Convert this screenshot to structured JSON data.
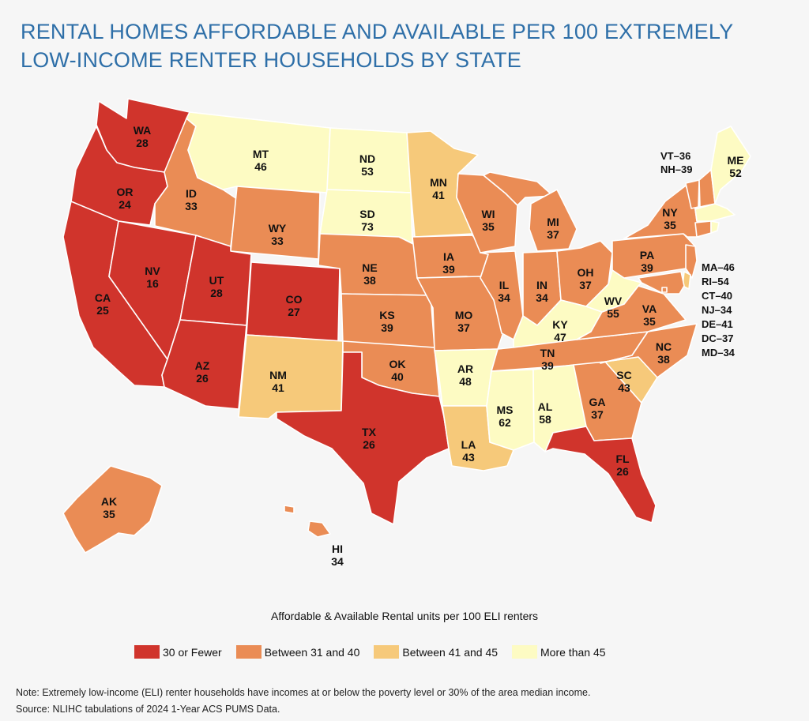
{
  "title": {
    "line1": "RENTAL HOMES AFFORDABLE AND AVAILABLE PER 100 EXTREMELY",
    "line2": "LOW-INCOME RENTER HOUSEHOLDS BY STATE"
  },
  "colors": {
    "cat1": "#d0342c",
    "cat2": "#ea8c55",
    "cat3": "#f6c97a",
    "cat4": "#fdfbc3"
  },
  "states": {
    "WA": {
      "abbr": "WA",
      "value": "28"
    },
    "OR": {
      "abbr": "OR",
      "value": "24"
    },
    "CA": {
      "abbr": "CA",
      "value": "25"
    },
    "NV": {
      "abbr": "NV",
      "value": "16"
    },
    "ID": {
      "abbr": "ID",
      "value": "33"
    },
    "MT": {
      "abbr": "MT",
      "value": "46"
    },
    "WY": {
      "abbr": "WY",
      "value": "33"
    },
    "UT": {
      "abbr": "UT",
      "value": "28"
    },
    "AZ": {
      "abbr": "AZ",
      "value": "26"
    },
    "CO": {
      "abbr": "CO",
      "value": "27"
    },
    "NM": {
      "abbr": "NM",
      "value": "41"
    },
    "ND": {
      "abbr": "ND",
      "value": "53"
    },
    "SD": {
      "abbr": "SD",
      "value": "73"
    },
    "NE": {
      "abbr": "NE",
      "value": "38"
    },
    "KS": {
      "abbr": "KS",
      "value": "39"
    },
    "OK": {
      "abbr": "OK",
      "value": "40"
    },
    "TX": {
      "abbr": "TX",
      "value": "26"
    },
    "MN": {
      "abbr": "MN",
      "value": "41"
    },
    "IA": {
      "abbr": "IA",
      "value": "39"
    },
    "MO": {
      "abbr": "MO",
      "value": "37"
    },
    "AR": {
      "abbr": "AR",
      "value": "48"
    },
    "LA": {
      "abbr": "LA",
      "value": "43"
    },
    "WI": {
      "abbr": "WI",
      "value": "35"
    },
    "IL": {
      "abbr": "IL",
      "value": "34"
    },
    "MI": {
      "abbr": "MI",
      "value": "37"
    },
    "IN": {
      "abbr": "IN",
      "value": "34"
    },
    "OH": {
      "abbr": "OH",
      "value": "37"
    },
    "KY": {
      "abbr": "KY",
      "value": "47"
    },
    "TN": {
      "abbr": "TN",
      "value": "39"
    },
    "MS": {
      "abbr": "MS",
      "value": "62"
    },
    "AL": {
      "abbr": "AL",
      "value": "58"
    },
    "GA": {
      "abbr": "GA",
      "value": "37"
    },
    "FL": {
      "abbr": "FL",
      "value": "26"
    },
    "SC": {
      "abbr": "SC",
      "value": "43"
    },
    "NC": {
      "abbr": "NC",
      "value": "38"
    },
    "VA": {
      "abbr": "VA",
      "value": "35"
    },
    "WV": {
      "abbr": "WV",
      "value": "55"
    },
    "PA": {
      "abbr": "PA",
      "value": "39"
    },
    "NY": {
      "abbr": "NY",
      "value": "35"
    },
    "ME": {
      "abbr": "ME",
      "value": "52"
    },
    "AK": {
      "abbr": "AK",
      "value": "35"
    },
    "HI": {
      "abbr": "HI",
      "value": "34"
    }
  },
  "small_states": {
    "vt": "VT–36",
    "nh": "NH–39",
    "ma": "MA–46",
    "ri": "RI–54",
    "ct": "CT–40",
    "nj": "NJ–34",
    "de": "DE–41",
    "dc": "DC–37",
    "md": "MD–34"
  },
  "legend": {
    "title": "Affordable & Available Rental units per 100 ELI renters",
    "items": [
      {
        "label": "30 or Fewer"
      },
      {
        "label": "Between 31 and 40"
      },
      {
        "label": "Between 41 and 45"
      },
      {
        "label": "More than 45"
      }
    ]
  },
  "note": "Note: Extremely low-income (ELI) renter households have incomes at or below the poverty level or 30% of the area median income.",
  "source": "Source: NLIHC tabulations of 2024 1-Year ACS PUMS Data."
}
